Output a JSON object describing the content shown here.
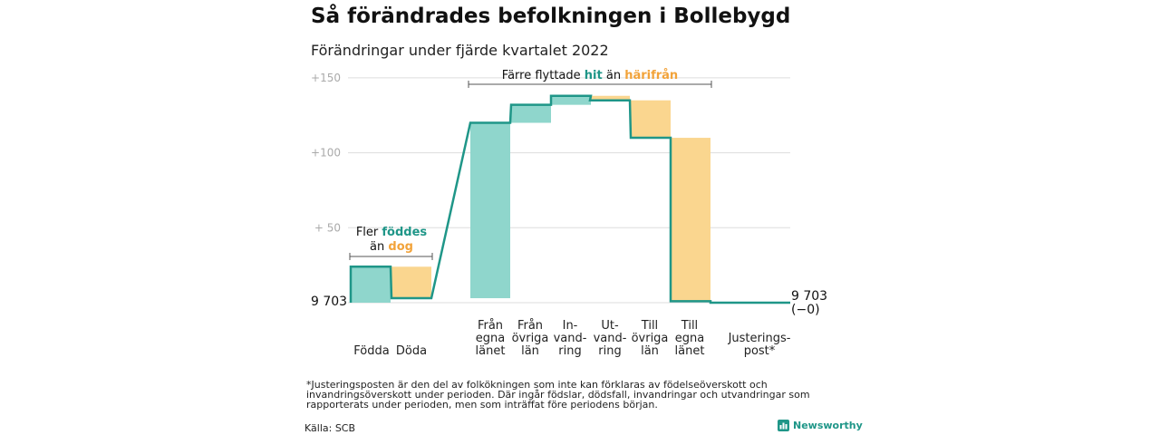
{
  "title": "Så förändrades befolkningen i Bollebygd",
  "subtitle": "Förändringar under fjärde kvartalet 2022",
  "colors": {
    "increase": "#8fd6cc",
    "decrease": "#fad68f",
    "line": "#1f9688",
    "grid": "#dddddd",
    "teal_text": "#1f9688",
    "orange_text": "#f2a33a"
  },
  "annotations": {
    "births_before": "Fler ",
    "births_hl": "föddes",
    "births_after": "än ",
    "births_hl2": "dog",
    "moves_before": "Färre flyttade ",
    "moves_hl": "hit",
    "moves_mid": " än ",
    "moves_hl2": "härifrån"
  },
  "start_label": "9 703",
  "end_label_1": "9 703",
  "end_label_2": "(−0)",
  "footnote": "*Justeringsposten är den del av folkökningen som inte kan förklaras av födelseöverskott och invandringsöverskott under perioden. Där ingår födslar, dödsfall, invandringar och utvandringar som rapporterats under perioden, men som inträffat före periodens början.",
  "source": "Källa: SCB",
  "brand": "Newsworthy",
  "chart_data": {
    "type": "bar",
    "variant": "waterfall",
    "start_value": 9703,
    "end_value": 9703,
    "yticks": [
      "+150",
      "+100",
      "+ 50"
    ],
    "ytick_values": [
      150,
      100,
      50
    ],
    "ylim": [
      0,
      150
    ],
    "categories": [
      {
        "label": [
          "Födda"
        ],
        "value": 24,
        "kind": "increase"
      },
      {
        "label": [
          "Döda"
        ],
        "value": -21,
        "kind": "decrease"
      },
      {
        "label": [
          "Från",
          "egna",
          "länet"
        ],
        "value": 117,
        "kind": "increase"
      },
      {
        "label": [
          "Från",
          "övriga",
          "län"
        ],
        "value": 12,
        "kind": "increase"
      },
      {
        "label": [
          "In-",
          "vand-",
          "ring"
        ],
        "value": 6,
        "kind": "increase"
      },
      {
        "label": [
          "Ut-",
          "vand-",
          "ring"
        ],
        "value": -3,
        "kind": "decrease"
      },
      {
        "label": [
          "Till",
          "övriga",
          "län"
        ],
        "value": -25,
        "kind": "decrease"
      },
      {
        "label": [
          "Till",
          "egna",
          "länet"
        ],
        "value": -109,
        "kind": "decrease"
      },
      {
        "label": [
          "Justerings-",
          "post*"
        ],
        "value": -1,
        "kind": "adjustment"
      }
    ]
  }
}
